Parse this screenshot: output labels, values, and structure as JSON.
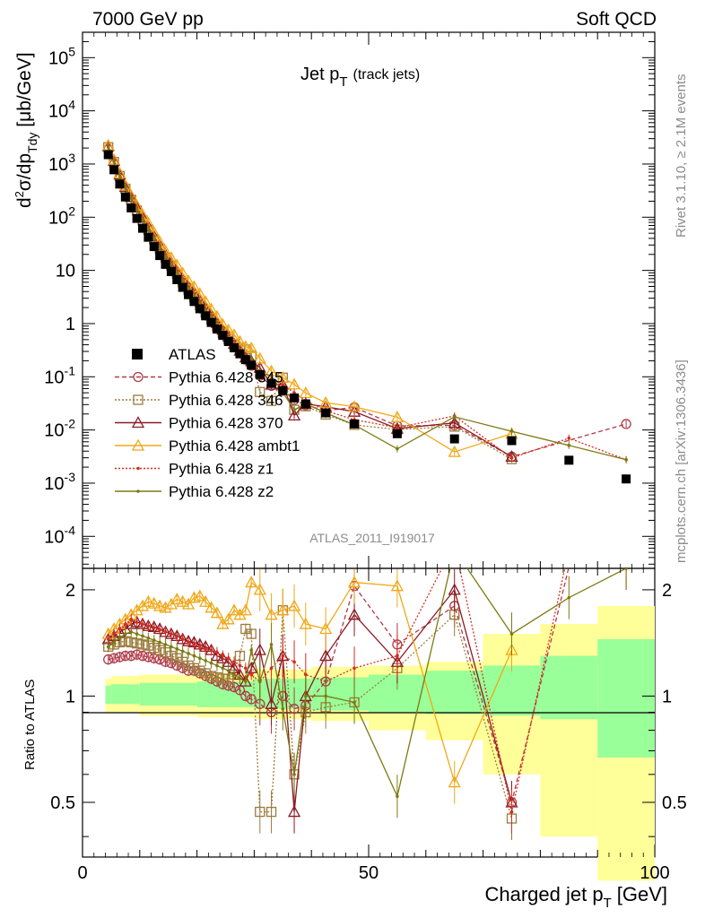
{
  "header": {
    "left": "7000 GeV pp",
    "right": "Soft QCD"
  },
  "side": {
    "rivet": "Rivet 3.1.10, ≥ 2.1M events",
    "mcplots": "mcplots.cern.ch [arXiv:1306.3436]"
  },
  "chart_data": {
    "type": "scatter",
    "title": "Jet p",
    "title_sub": "T",
    "title_note": "(track jets)",
    "analysis": "ATLAS_2011_I919017",
    "xlabel": "Charged jet p",
    "xlabel_sub": "T",
    "xlabel_unit": "[GeV]",
    "ylabel": "d²σ/dp_Tdy [μb/GeV]",
    "ratio_ylabel": "Ratio to ATLAS",
    "xlim": [
      0,
      100
    ],
    "ylim_log": [
      2.5e-05,
      300000
    ],
    "ratio_ylim": [
      0.35,
      2.3
    ],
    "x_ticks": [
      "0",
      "50",
      "100"
    ],
    "y_ticks": [
      "10^-4",
      "10^-3",
      "10^-2",
      "10^-1",
      "1",
      "10",
      "10^2",
      "10^3",
      "10^4",
      "10^5"
    ],
    "ratio_ticks": [
      "0.5",
      "1",
      "2"
    ],
    "x": [
      4.5,
      5.5,
      6.5,
      7.5,
      8.5,
      9.5,
      10.5,
      11.5,
      12.5,
      13.5,
      14.5,
      15.5,
      16.5,
      17.5,
      18.5,
      19.5,
      20.5,
      21.5,
      22.5,
      23.5,
      24.5,
      25.5,
      26.5,
      27.5,
      28.5,
      29.5,
      31,
      33,
      35,
      37,
      39,
      42.5,
      47.5,
      55,
      65,
      75,
      85,
      95
    ],
    "series": [
      {
        "name": "ATLAS",
        "color": "#000000",
        "style": "data",
        "values": [
          1500,
          780,
          420,
          240,
          150,
          95,
          62,
          42,
          28,
          19,
          13,
          9.5,
          6.7,
          4.8,
          3.5,
          2.6,
          1.9,
          1.4,
          1.05,
          0.79,
          0.6,
          0.46,
          0.35,
          0.27,
          0.21,
          0.165,
          0.11,
          0.075,
          0.055,
          0.04,
          0.031,
          0.021,
          0.013,
          0.0085,
          0.0068,
          0.0063,
          0.0027,
          0.0012
        ]
      },
      {
        "name": "Pythia 6.428 345",
        "color": "#b03a48",
        "style": "circle-dashed",
        "ratio": [
          1.27,
          1.28,
          1.29,
          1.3,
          1.3,
          1.31,
          1.3,
          1.29,
          1.28,
          1.27,
          1.25,
          1.24,
          1.22,
          1.2,
          1.18,
          1.18,
          1.16,
          1.14,
          1.12,
          1.1,
          1.08,
          1.07,
          1.06,
          1.04,
          1.0,
          0.98,
          0.95,
          0.9,
          1.0,
          0.92,
          0.94,
          1.1,
          2.05,
          1.4,
          1.8,
          0.5,
          null,
          10.8
        ]
      },
      {
        "name": "Pythia 6.428 346",
        "color": "#9c7b3c",
        "style": "square-dotted",
        "ratio": [
          1.38,
          1.4,
          1.42,
          1.43,
          1.42,
          1.41,
          1.4,
          1.39,
          1.37,
          1.35,
          1.33,
          1.3,
          1.28,
          1.25,
          1.22,
          1.2,
          1.18,
          1.16,
          1.14,
          1.13,
          1.12,
          1.12,
          1.15,
          1.3,
          1.55,
          1.5,
          0.47,
          0.47,
          1.75,
          0.6,
          0.9,
          0.93,
          0.96,
          1.2,
          1.7,
          0.45,
          null,
          null
        ]
      },
      {
        "name": "Pythia 6.428 370",
        "color": "#8b1a24",
        "style": "triangle-solid",
        "ratio": [
          1.45,
          1.48,
          1.52,
          1.55,
          1.6,
          1.62,
          1.6,
          1.58,
          1.57,
          1.55,
          1.52,
          1.5,
          1.48,
          1.45,
          1.43,
          1.42,
          1.4,
          1.38,
          1.35,
          1.3,
          1.28,
          1.25,
          1.2,
          1.15,
          1.1,
          1.2,
          1.35,
          0.95,
          1.3,
          0.47,
          1.0,
          1.3,
          1.7,
          1.25,
          2.0,
          0.5,
          null,
          null
        ]
      },
      {
        "name": "Pythia 6.428 ambt1",
        "color": "#f0a818",
        "style": "triangle-solid",
        "ratio": [
          1.5,
          1.55,
          1.6,
          1.65,
          1.7,
          1.75,
          1.8,
          1.85,
          1.83,
          1.8,
          1.78,
          1.82,
          1.88,
          1.85,
          1.82,
          1.9,
          1.92,
          1.85,
          1.78,
          1.72,
          1.6,
          1.65,
          1.75,
          1.7,
          1.75,
          2.1,
          2.0,
          1.7,
          1.75,
          1.8,
          1.6,
          1.55,
          2.1,
          2.05,
          0.57,
          1.35,
          null,
          null
        ]
      },
      {
        "name": "Pythia 6.428 z1",
        "color": "#d42d1e",
        "style": "dot-dotted",
        "ratio": [
          1.45,
          1.5,
          1.55,
          1.6,
          1.65,
          1.62,
          1.6,
          1.58,
          1.56,
          1.54,
          1.52,
          1.5,
          1.48,
          1.45,
          1.42,
          1.4,
          1.38,
          1.36,
          1.35,
          1.33,
          1.3,
          1.28,
          1.25,
          1.22,
          1.2,
          1.15,
          1.1,
          1.2,
          1.3,
          1.25,
          1.15,
          1.1,
          1.2,
          1.3,
          2.7,
          0.47,
          2.6,
          2.3
        ]
      },
      {
        "name": "Pythia 6.428 z2",
        "color": "#7d7a12",
        "style": "dot-solid",
        "ratio": [
          1.38,
          1.42,
          1.46,
          1.5,
          1.52,
          1.5,
          1.48,
          1.46,
          1.44,
          1.42,
          1.4,
          1.38,
          1.36,
          1.34,
          1.32,
          1.3,
          1.28,
          1.26,
          1.24,
          1.22,
          1.2,
          1.18,
          1.15,
          1.12,
          1.1,
          1.35,
          1.1,
          1.4,
          0.92,
          0.6,
          1.0,
          1.0,
          0.96,
          0.52,
          2.6,
          1.5,
          1.9,
          2.3
        ]
      }
    ],
    "bands": [
      {
        "xmin": 4,
        "xmax": 5,
        "inner": [
          0.95,
          1.07
        ],
        "outer": [
          0.9,
          1.12
        ]
      },
      {
        "xmin": 5,
        "xmax": 10,
        "inner": [
          0.95,
          1.08
        ],
        "outer": [
          0.9,
          1.14
        ]
      },
      {
        "xmin": 10,
        "xmax": 20,
        "inner": [
          0.94,
          1.09
        ],
        "outer": [
          0.88,
          1.15
        ]
      },
      {
        "xmin": 20,
        "xmax": 30,
        "inner": [
          0.93,
          1.1
        ],
        "outer": [
          0.87,
          1.16
        ]
      },
      {
        "xmin": 30,
        "xmax": 40,
        "inner": [
          0.92,
          1.12
        ],
        "outer": [
          0.86,
          1.19
        ]
      },
      {
        "xmin": 40,
        "xmax": 50,
        "inner": [
          0.91,
          1.13
        ],
        "outer": [
          0.85,
          1.21
        ]
      },
      {
        "xmin": 50,
        "xmax": 60,
        "inner": [
          0.9,
          1.15
        ],
        "outer": [
          0.8,
          1.22
        ]
      },
      {
        "xmin": 60,
        "xmax": 70,
        "inner": [
          0.89,
          1.18
        ],
        "outer": [
          0.75,
          1.25
        ]
      },
      {
        "xmin": 70,
        "xmax": 80,
        "inner": [
          0.88,
          1.22
        ],
        "outer": [
          0.6,
          1.5
        ]
      },
      {
        "xmin": 80,
        "xmax": 90,
        "inner": [
          0.86,
          1.3
        ],
        "outer": [
          0.4,
          1.6
        ]
      },
      {
        "xmin": 90,
        "xmax": 100,
        "inner": [
          0.67,
          1.45
        ],
        "outer": [
          0.3,
          1.8
        ]
      }
    ],
    "band_colors": {
      "inner": "#99ff99",
      "outer": "#ffff99"
    },
    "legend_placement": "center-left"
  }
}
